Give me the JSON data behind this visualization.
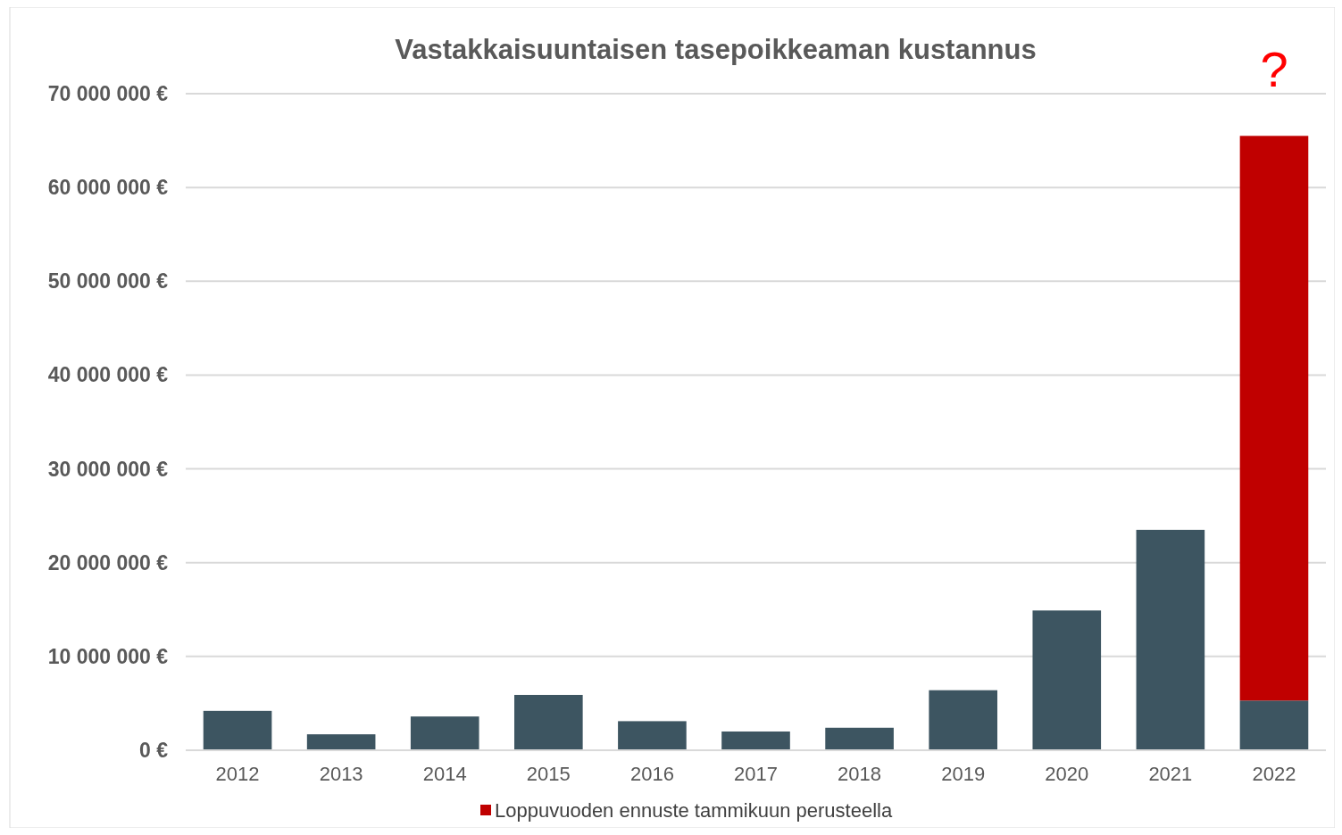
{
  "chart_data": {
    "type": "bar",
    "title": "Vastakkaisuuntaisen tasepoikkeaman kustannus",
    "categories": [
      "2012",
      "2013",
      "2014",
      "2015",
      "2016",
      "2017",
      "2018",
      "2019",
      "2020",
      "2021",
      "2022"
    ],
    "stacked": true,
    "series": [
      {
        "color": "#3d5561",
        "values": [
          4200000,
          1700000,
          3600000,
          5900000,
          3100000,
          2000000,
          2400000,
          6400000,
          14900000,
          23500000,
          5300000
        ]
      },
      {
        "name": "Loppuvuoden ennuste tammikuun perusteella",
        "color": "#c00000",
        "values": [
          null,
          null,
          null,
          null,
          null,
          null,
          null,
          null,
          null,
          null,
          60200000
        ]
      }
    ],
    "ylim": [
      0,
      70000000
    ],
    "yticks": [
      {
        "value": 0,
        "label": "0 €"
      },
      {
        "value": 10000000,
        "label": "10 000 000 €"
      },
      {
        "value": 20000000,
        "label": "20 000 000 €"
      },
      {
        "value": 30000000,
        "label": "30 000 000 €"
      },
      {
        "value": 40000000,
        "label": "40 000 000 €"
      },
      {
        "value": 50000000,
        "label": "50 000 000 €"
      },
      {
        "value": 60000000,
        "label": "60 000 000 €"
      },
      {
        "value": 70000000,
        "label": "70 000 000 €"
      }
    ],
    "grid": "y",
    "legend": "bottom",
    "annotations": [
      {
        "text": "?",
        "x": "2022",
        "y": 65500000
      }
    ]
  }
}
